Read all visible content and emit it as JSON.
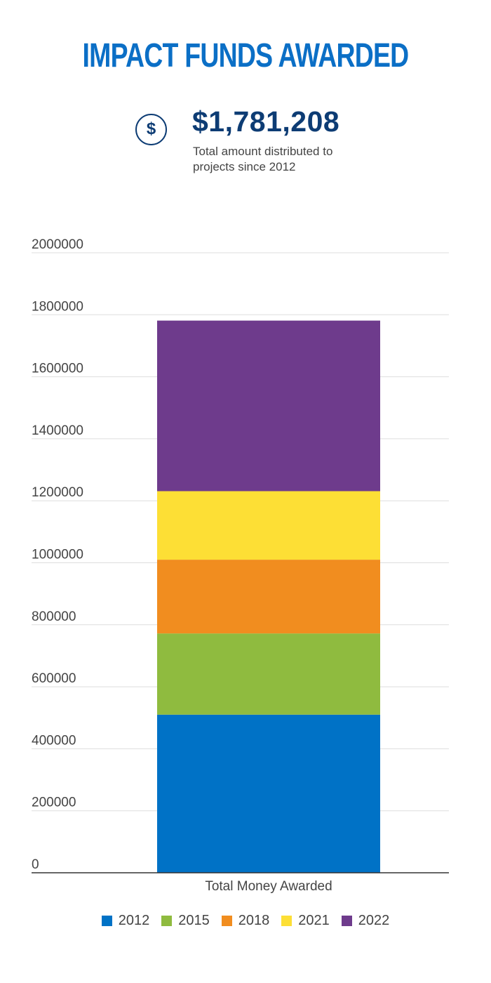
{
  "header": {
    "title": "IMPACT FUNDS AWARDED",
    "icon": "dollar-circle-icon",
    "icon_glyph": "$",
    "total_amount": "$1,781,208",
    "total_caption": "Total amount distributed to projects since 2012"
  },
  "chart_data": {
    "type": "bar",
    "stacked": true,
    "categories": [
      "Total Money Awarded"
    ],
    "series": [
      {
        "name": "2012",
        "values": [
          510000
        ],
        "color": "#0072c6"
      },
      {
        "name": "2015",
        "values": [
          262000
        ],
        "color": "#8fbb3f"
      },
      {
        "name": "2018",
        "values": [
          238000
        ],
        "color": "#f18d1f"
      },
      {
        "name": "2021",
        "values": [
          221000
        ],
        "color": "#fddf35"
      },
      {
        "name": "2022",
        "values": [
          550208
        ],
        "color": "#6e3b8c"
      }
    ],
    "ylim": [
      0,
      2000000
    ],
    "yticks": [
      "0",
      "200000",
      "400000",
      "600000",
      "800000",
      "1000000",
      "1200000",
      "1400000",
      "1600000",
      "1800000",
      "2000000"
    ],
    "grid": true,
    "legend_position": "bottom"
  }
}
